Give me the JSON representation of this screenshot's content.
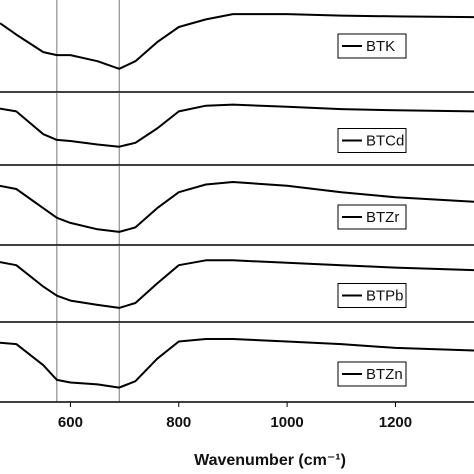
{
  "chart_data": [
    {
      "type": "line",
      "x": [
        470,
        500,
        550,
        575,
        600,
        650,
        690,
        720,
        760,
        800,
        850,
        900,
        1000,
        1100,
        1200,
        1345
      ],
      "series": [
        {
          "name": "BTK",
          "color": "#000000",
          "values": [
            80,
            65,
            42,
            38,
            38,
            30,
            20,
            30,
            55,
            75,
            85,
            92,
            92,
            90,
            89,
            88
          ]
        }
      ],
      "xlim": [
        470,
        1345
      ],
      "ylim": [
        0,
        100
      ],
      "vlines": [
        575,
        690
      ]
    },
    {
      "type": "line",
      "x": [
        470,
        500,
        550,
        575,
        600,
        650,
        690,
        720,
        760,
        800,
        850,
        900,
        1000,
        1100,
        1200,
        1345
      ],
      "series": [
        {
          "name": "BTCd",
          "color": "#000000",
          "values": [
            85,
            80,
            40,
            30,
            28,
            22,
            18,
            25,
            50,
            80,
            90,
            92,
            88,
            84,
            82,
            80
          ]
        }
      ],
      "xlim": [
        470,
        1345
      ],
      "ylim": [
        0,
        100
      ],
      "vlines": [
        575,
        690
      ]
    },
    {
      "type": "line",
      "x": [
        470,
        500,
        550,
        575,
        600,
        650,
        690,
        720,
        760,
        800,
        850,
        900,
        1000,
        1100,
        1200,
        1345
      ],
      "series": [
        {
          "name": "BTZr",
          "color": "#000000",
          "values": [
            80,
            75,
            45,
            30,
            22,
            12,
            8,
            15,
            45,
            70,
            82,
            86,
            80,
            70,
            62,
            55
          ]
        }
      ],
      "xlim": [
        470,
        1345
      ],
      "ylim": [
        0,
        100
      ],
      "vlines": [
        575,
        690
      ]
    },
    {
      "type": "line",
      "x": [
        470,
        500,
        550,
        575,
        600,
        650,
        690,
        720,
        760,
        800,
        850,
        900,
        1000,
        1100,
        1200,
        1345
      ],
      "series": [
        {
          "name": "BTPb",
          "color": "#000000",
          "values": [
            85,
            80,
            45,
            30,
            22,
            15,
            10,
            18,
            50,
            80,
            88,
            88,
            84,
            80,
            76,
            72
          ]
        }
      ],
      "xlim": [
        470,
        1345
      ],
      "ylim": [
        0,
        100
      ],
      "vlines": [
        575,
        690
      ]
    },
    {
      "type": "line",
      "x": [
        470,
        500,
        550,
        575,
        600,
        650,
        690,
        720,
        760,
        800,
        850,
        900,
        1000,
        1100,
        1200,
        1345
      ],
      "series": [
        {
          "name": "BTZn",
          "color": "#000000",
          "values": [
            80,
            78,
            45,
            22,
            18,
            15,
            10,
            20,
            55,
            82,
            86,
            86,
            82,
            78,
            72,
            68
          ]
        }
      ],
      "xlim": [
        470,
        1345
      ],
      "ylim": [
        0,
        100
      ],
      "vlines": [
        575,
        690
      ],
      "xticks": [
        600,
        800,
        1000,
        1200
      ],
      "xlabel": "Wavenumber (cm⁻¹)"
    }
  ]
}
